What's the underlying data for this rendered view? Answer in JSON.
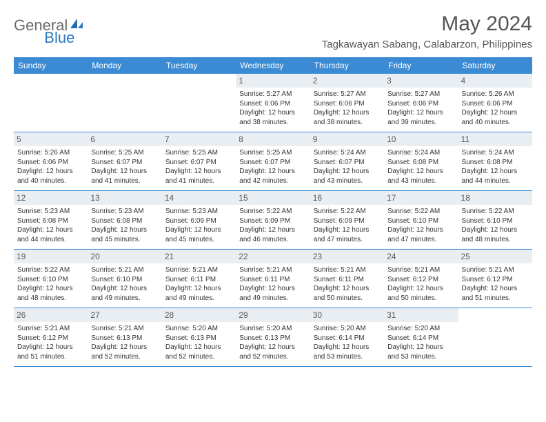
{
  "brand": {
    "part1": "General",
    "part2": "Blue"
  },
  "title": "May 2024",
  "location": "Tagkawayan Sabang, Calabarzon, Philippines",
  "colors": {
    "header_bg": "#3b8bd4",
    "header_text": "#ffffff",
    "daynum_bg": "#e9eef2",
    "border": "#3b8bd4",
    "body_text": "#333333",
    "title_text": "#555555",
    "logo_gray": "#6b6b6b",
    "logo_blue": "#2b78c2",
    "page_bg": "#ffffff"
  },
  "weekdays": [
    "Sunday",
    "Monday",
    "Tuesday",
    "Wednesday",
    "Thursday",
    "Friday",
    "Saturday"
  ],
  "weeks": [
    [
      {
        "empty": true
      },
      {
        "empty": true
      },
      {
        "empty": true
      },
      {
        "day": "1",
        "sunrise": "Sunrise: 5:27 AM",
        "sunset": "Sunset: 6:06 PM",
        "daylight": "Daylight: 12 hours and 38 minutes."
      },
      {
        "day": "2",
        "sunrise": "Sunrise: 5:27 AM",
        "sunset": "Sunset: 6:06 PM",
        "daylight": "Daylight: 12 hours and 38 minutes."
      },
      {
        "day": "3",
        "sunrise": "Sunrise: 5:27 AM",
        "sunset": "Sunset: 6:06 PM",
        "daylight": "Daylight: 12 hours and 39 minutes."
      },
      {
        "day": "4",
        "sunrise": "Sunrise: 5:26 AM",
        "sunset": "Sunset: 6:06 PM",
        "daylight": "Daylight: 12 hours and 40 minutes."
      }
    ],
    [
      {
        "day": "5",
        "sunrise": "Sunrise: 5:26 AM",
        "sunset": "Sunset: 6:06 PM",
        "daylight": "Daylight: 12 hours and 40 minutes."
      },
      {
        "day": "6",
        "sunrise": "Sunrise: 5:25 AM",
        "sunset": "Sunset: 6:07 PM",
        "daylight": "Daylight: 12 hours and 41 minutes."
      },
      {
        "day": "7",
        "sunrise": "Sunrise: 5:25 AM",
        "sunset": "Sunset: 6:07 PM",
        "daylight": "Daylight: 12 hours and 41 minutes."
      },
      {
        "day": "8",
        "sunrise": "Sunrise: 5:25 AM",
        "sunset": "Sunset: 6:07 PM",
        "daylight": "Daylight: 12 hours and 42 minutes."
      },
      {
        "day": "9",
        "sunrise": "Sunrise: 5:24 AM",
        "sunset": "Sunset: 6:07 PM",
        "daylight": "Daylight: 12 hours and 43 minutes."
      },
      {
        "day": "10",
        "sunrise": "Sunrise: 5:24 AM",
        "sunset": "Sunset: 6:08 PM",
        "daylight": "Daylight: 12 hours and 43 minutes."
      },
      {
        "day": "11",
        "sunrise": "Sunrise: 5:24 AM",
        "sunset": "Sunset: 6:08 PM",
        "daylight": "Daylight: 12 hours and 44 minutes."
      }
    ],
    [
      {
        "day": "12",
        "sunrise": "Sunrise: 5:23 AM",
        "sunset": "Sunset: 6:08 PM",
        "daylight": "Daylight: 12 hours and 44 minutes."
      },
      {
        "day": "13",
        "sunrise": "Sunrise: 5:23 AM",
        "sunset": "Sunset: 6:08 PM",
        "daylight": "Daylight: 12 hours and 45 minutes."
      },
      {
        "day": "14",
        "sunrise": "Sunrise: 5:23 AM",
        "sunset": "Sunset: 6:09 PM",
        "daylight": "Daylight: 12 hours and 45 minutes."
      },
      {
        "day": "15",
        "sunrise": "Sunrise: 5:22 AM",
        "sunset": "Sunset: 6:09 PM",
        "daylight": "Daylight: 12 hours and 46 minutes."
      },
      {
        "day": "16",
        "sunrise": "Sunrise: 5:22 AM",
        "sunset": "Sunset: 6:09 PM",
        "daylight": "Daylight: 12 hours and 47 minutes."
      },
      {
        "day": "17",
        "sunrise": "Sunrise: 5:22 AM",
        "sunset": "Sunset: 6:10 PM",
        "daylight": "Daylight: 12 hours and 47 minutes."
      },
      {
        "day": "18",
        "sunrise": "Sunrise: 5:22 AM",
        "sunset": "Sunset: 6:10 PM",
        "daylight": "Daylight: 12 hours and 48 minutes."
      }
    ],
    [
      {
        "day": "19",
        "sunrise": "Sunrise: 5:22 AM",
        "sunset": "Sunset: 6:10 PM",
        "daylight": "Daylight: 12 hours and 48 minutes."
      },
      {
        "day": "20",
        "sunrise": "Sunrise: 5:21 AM",
        "sunset": "Sunset: 6:10 PM",
        "daylight": "Daylight: 12 hours and 49 minutes."
      },
      {
        "day": "21",
        "sunrise": "Sunrise: 5:21 AM",
        "sunset": "Sunset: 6:11 PM",
        "daylight": "Daylight: 12 hours and 49 minutes."
      },
      {
        "day": "22",
        "sunrise": "Sunrise: 5:21 AM",
        "sunset": "Sunset: 6:11 PM",
        "daylight": "Daylight: 12 hours and 49 minutes."
      },
      {
        "day": "23",
        "sunrise": "Sunrise: 5:21 AM",
        "sunset": "Sunset: 6:11 PM",
        "daylight": "Daylight: 12 hours and 50 minutes."
      },
      {
        "day": "24",
        "sunrise": "Sunrise: 5:21 AM",
        "sunset": "Sunset: 6:12 PM",
        "daylight": "Daylight: 12 hours and 50 minutes."
      },
      {
        "day": "25",
        "sunrise": "Sunrise: 5:21 AM",
        "sunset": "Sunset: 6:12 PM",
        "daylight": "Daylight: 12 hours and 51 minutes."
      }
    ],
    [
      {
        "day": "26",
        "sunrise": "Sunrise: 5:21 AM",
        "sunset": "Sunset: 6:12 PM",
        "daylight": "Daylight: 12 hours and 51 minutes."
      },
      {
        "day": "27",
        "sunrise": "Sunrise: 5:21 AM",
        "sunset": "Sunset: 6:13 PM",
        "daylight": "Daylight: 12 hours and 52 minutes."
      },
      {
        "day": "28",
        "sunrise": "Sunrise: 5:20 AM",
        "sunset": "Sunset: 6:13 PM",
        "daylight": "Daylight: 12 hours and 52 minutes."
      },
      {
        "day": "29",
        "sunrise": "Sunrise: 5:20 AM",
        "sunset": "Sunset: 6:13 PM",
        "daylight": "Daylight: 12 hours and 52 minutes."
      },
      {
        "day": "30",
        "sunrise": "Sunrise: 5:20 AM",
        "sunset": "Sunset: 6:14 PM",
        "daylight": "Daylight: 12 hours and 53 minutes."
      },
      {
        "day": "31",
        "sunrise": "Sunrise: 5:20 AM",
        "sunset": "Sunset: 6:14 PM",
        "daylight": "Daylight: 12 hours and 53 minutes."
      },
      {
        "empty": true
      }
    ]
  ]
}
